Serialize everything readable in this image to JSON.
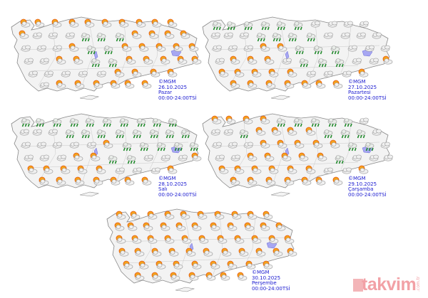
{
  "legend": {
    "p": "partly-cloudy-icon",
    "c": "cloudy-icon",
    "r": "rain-icon",
    "s": "sunny-icon"
  },
  "maps": [
    {
      "copyright": "©MGM",
      "date": "26.10.2025",
      "day": "Pazar",
      "period": "00:00-24:00TSİ",
      "icons": "pppppppppppcccrrrppppcccprrpppppccpprrpppppcccccppppcpppppp"
    },
    {
      "copyright": "©MGM",
      "date": "27.10.2025",
      "day": "Pazartesi",
      "period": "00:00-24:00TSİ",
      "icons": "rrrrrrcccccccrrrrcccccccpprrrccccpppcrrrccppppppcccpppppppp"
    },
    {
      "copyright": "©MGM",
      "date": "28.10.2025",
      "day": "Salı",
      "period": "00:00-24:00TSİ",
      "icons": "rrrrrrrrrrcccrrrrrrrrcccccprrrrrcccpprrcccppppppcccpppppppp"
    },
    {
      "copyright": "©MGM",
      "date": "29.10.2025",
      "day": "Çarşamba",
      "period": "00:00-24:00TSİ",
      "icons": "pppprrrrrcccrpppprrrccccppppprrcccppppprcccppppppccpppppppp"
    },
    {
      "copyright": "©MGM",
      "date": "30.10.2025",
      "day": "Perşembe",
      "period": "00:00-24:00TSİ",
      "icons": "ppppppppppppppppppppppppppppppppppppppppppppppppppppppppppp"
    }
  ],
  "watermark": {
    "brand": "takvim",
    "tld": ".com.tr"
  }
}
